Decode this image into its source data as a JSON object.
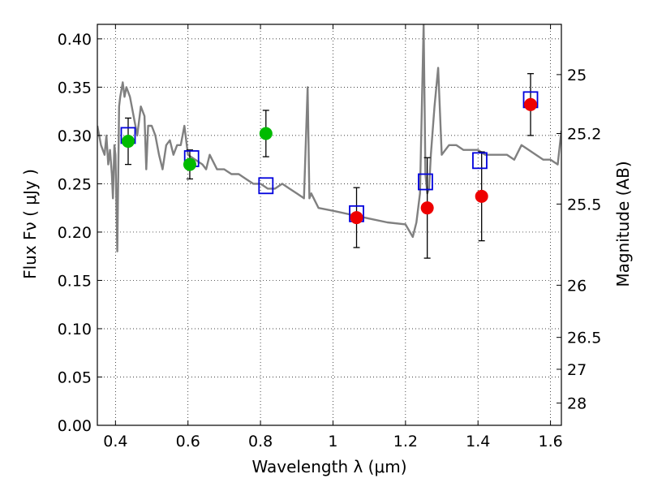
{
  "chart_data": {
    "type": "scatter",
    "xlabel": "Wavelength  λ (μm)",
    "ylabel": "Flux  Fν  ( μJy )",
    "y2label": "Magnitude (AB)",
    "xlim": [
      0.35,
      1.63
    ],
    "ylim": [
      0.0,
      0.415
    ],
    "xticks": [
      0.4,
      0.6,
      0.8,
      1.0,
      1.2,
      1.4,
      1.6
    ],
    "xtick_labels": [
      "0.4",
      "0.6",
      "0.8",
      "1",
      "1.2",
      "1.4",
      "1.6"
    ],
    "yticks": [
      0.0,
      0.05,
      0.1,
      0.15,
      0.2,
      0.25,
      0.3,
      0.35,
      0.4
    ],
    "ytick_labels": [
      "0.00",
      "0.05",
      "0.10",
      "0.15",
      "0.20",
      "0.25",
      "0.30",
      "0.35",
      "0.40"
    ],
    "y2ticks": [
      {
        "label": "25",
        "flux": 0.363
      },
      {
        "label": "25.2",
        "flux": 0.302
      },
      {
        "label": "25.5",
        "flux": 0.229
      },
      {
        "label": "26",
        "flux": 0.145
      },
      {
        "label": "26.5",
        "flux": 0.091
      },
      {
        "label": "27",
        "flux": 0.058
      },
      {
        "label": "28",
        "flux": 0.023
      }
    ],
    "grid": true,
    "colors": {
      "model": "#808080",
      "detection_green": "#00bb00",
      "detection_red": "#ee0000",
      "model_box": "#0000dd",
      "errorbar": "#000000"
    },
    "series": [
      {
        "name": "model spectrum",
        "kind": "line",
        "x": [
          0.35,
          0.36,
          0.37,
          0.375,
          0.38,
          0.385,
          0.39,
          0.393,
          0.397,
          0.4,
          0.405,
          0.41,
          0.413,
          0.42,
          0.425,
          0.43,
          0.435,
          0.44,
          0.45,
          0.46,
          0.47,
          0.48,
          0.485,
          0.49,
          0.5,
          0.51,
          0.52,
          0.53,
          0.54,
          0.55,
          0.56,
          0.57,
          0.58,
          0.59,
          0.6,
          0.62,
          0.64,
          0.65,
          0.66,
          0.68,
          0.7,
          0.72,
          0.74,
          0.76,
          0.78,
          0.8,
          0.82,
          0.84,
          0.86,
          0.88,
          0.9,
          0.92,
          0.93,
          0.935,
          0.94,
          0.96,
          1.0,
          1.05,
          1.1,
          1.15,
          1.2,
          1.22,
          1.23,
          1.24,
          1.25,
          1.255,
          1.26,
          1.265,
          1.27,
          1.28,
          1.29,
          1.3,
          1.31,
          1.32,
          1.34,
          1.36,
          1.38,
          1.4,
          1.42,
          1.44,
          1.46,
          1.48,
          1.5,
          1.52,
          1.54,
          1.56,
          1.58,
          1.6,
          1.62,
          1.63
        ],
        "y": [
          0.31,
          0.29,
          0.28,
          0.3,
          0.27,
          0.285,
          0.26,
          0.235,
          0.29,
          0.28,
          0.18,
          0.33,
          0.34,
          0.355,
          0.34,
          0.35,
          0.345,
          0.34,
          0.32,
          0.3,
          0.33,
          0.32,
          0.265,
          0.31,
          0.31,
          0.3,
          0.28,
          0.265,
          0.29,
          0.295,
          0.28,
          0.29,
          0.29,
          0.31,
          0.28,
          0.275,
          0.27,
          0.265,
          0.28,
          0.265,
          0.265,
          0.26,
          0.26,
          0.255,
          0.25,
          0.25,
          0.245,
          0.245,
          0.25,
          0.245,
          0.24,
          0.235,
          0.35,
          0.235,
          0.24,
          0.225,
          0.222,
          0.218,
          0.214,
          0.21,
          0.208,
          0.195,
          0.21,
          0.24,
          0.415,
          0.26,
          0.24,
          0.245,
          0.28,
          0.33,
          0.37,
          0.28,
          0.285,
          0.29,
          0.29,
          0.285,
          0.285,
          0.285,
          0.28,
          0.28,
          0.28,
          0.28,
          0.275,
          0.29,
          0.285,
          0.28,
          0.275,
          0.275,
          0.27,
          0.305
        ]
      },
      {
        "name": "detections (green)",
        "kind": "points",
        "x": [
          0.435,
          0.605,
          0.815
        ],
        "y": [
          0.294,
          0.27,
          0.302
        ],
        "err": [
          0.024,
          0.015,
          0.024
        ]
      },
      {
        "name": "detections (red)",
        "kind": "points",
        "x": [
          1.065,
          1.26,
          1.41,
          1.545
        ],
        "y": [
          0.215,
          0.225,
          0.237,
          0.332
        ],
        "err": [
          0.031,
          0.052,
          0.046,
          0.032
        ]
      },
      {
        "name": "model bandpass",
        "kind": "squares",
        "x": [
          0.435,
          0.61,
          0.815,
          1.065,
          1.255,
          1.405,
          1.545
        ],
        "y": [
          0.3,
          0.276,
          0.248,
          0.219,
          0.252,
          0.274,
          0.337
        ]
      }
    ]
  }
}
